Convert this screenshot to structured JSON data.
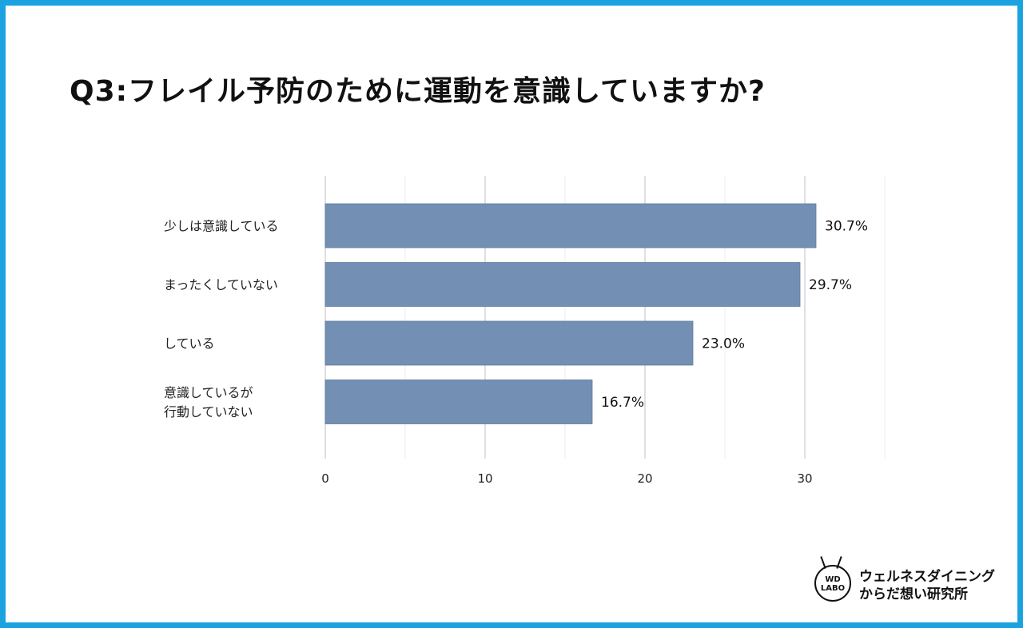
{
  "title": "Q3:フレイル予防のために運動を意識していますか?",
  "brand": {
    "logo_line1": "WD",
    "logo_line2": "LABO",
    "name_line1": "ウェルネスダイニング",
    "name_line2": "からだ想い研究所"
  },
  "colors": {
    "bar": "#7390b4",
    "grid": "#cccccc",
    "border": "#1aa3e0"
  },
  "chart_data": {
    "type": "bar",
    "orientation": "horizontal",
    "title": "",
    "categories": [
      [
        "少しは意識している"
      ],
      [
        "まったくしていない"
      ],
      [
        "している"
      ],
      [
        "意識しているが",
        "行動していない"
      ]
    ],
    "values": [
      30.7,
      29.7,
      23.0,
      16.7
    ],
    "value_labels": [
      "30.7%",
      "29.7%",
      "23.0%",
      "16.7%"
    ],
    "xlim": [
      0,
      35
    ],
    "xticks": [
      0,
      10,
      20,
      30
    ],
    "xtick_labels": [
      "0",
      "10",
      "20",
      "30"
    ],
    "grid": true
  }
}
